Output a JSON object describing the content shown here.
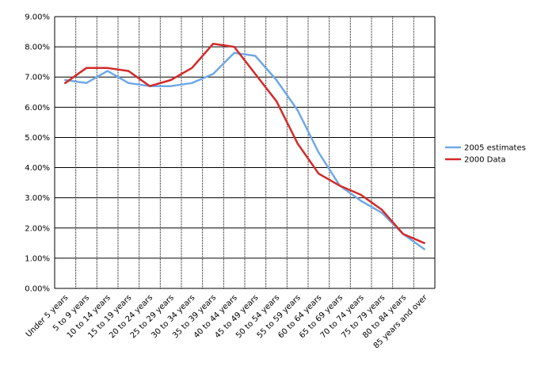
{
  "chart_data": {
    "type": "line",
    "categories": [
      "Under 5 years",
      "5 to 9 years",
      "10 to 14 years",
      "15 to 19 years",
      "20 to 24 years",
      "25 to 29 years",
      "30 to 34 years",
      "35 to 39 years",
      "40 to 44 years",
      "45 to 49 years",
      "50 to 54 years",
      "55 to 59 years",
      "60 to 64 years",
      "65 to 69 years",
      "70 to 74 years",
      "75 to 79 years",
      "80 to 84 years",
      "85 years and over"
    ],
    "series": [
      {
        "name": "2005 estimates",
        "color": "#6fa8e6",
        "values": [
          6.9,
          6.8,
          7.2,
          6.8,
          6.7,
          6.7,
          6.8,
          7.1,
          7.8,
          7.7,
          6.9,
          5.9,
          4.5,
          3.4,
          2.9,
          2.5,
          1.8,
          1.3
        ]
      },
      {
        "name": "2000 Data",
        "color": "#d42a2a",
        "values": [
          6.8,
          7.3,
          7.3,
          7.2,
          6.7,
          6.9,
          7.3,
          8.1,
          8.0,
          7.1,
          6.2,
          4.8,
          3.8,
          3.4,
          3.1,
          2.6,
          1.8,
          1.5
        ]
      }
    ],
    "ylim": [
      0,
      9
    ],
    "yticks": [
      "0.00%",
      "1.00%",
      "2.00%",
      "3.00%",
      "4.00%",
      "5.00%",
      "6.00%",
      "7.00%",
      "8.00%",
      "9.00%"
    ],
    "grid": true,
    "legend": "right",
    "title": "",
    "xlabel": "",
    "ylabel": ""
  }
}
